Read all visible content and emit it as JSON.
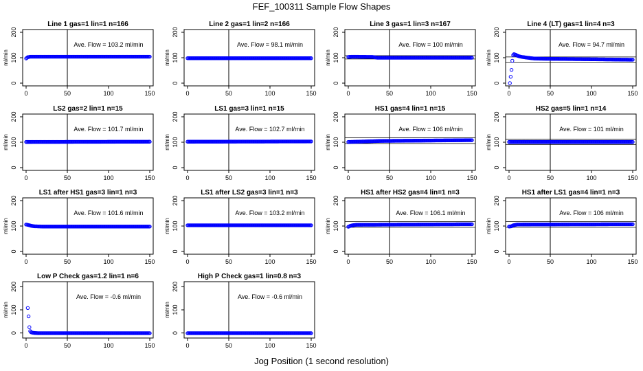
{
  "figure": {
    "title": "FEF_100311  Sample Flow Shapes",
    "xlabel": "Jog Position (1 second resolution)"
  },
  "style": {
    "point_color": "#0000ff",
    "axis_color": "#000000"
  },
  "chart_data": [
    {
      "type": "scatter",
      "title": "Line 1 gas=1 lin=1 n=166",
      "ylabel": "ml/min",
      "xlim": [
        0,
        150
      ],
      "ylim": [
        0,
        200
      ],
      "xticks": [
        0,
        50,
        100,
        150
      ],
      "yticks": [
        0,
        100,
        200
      ],
      "ref_lines": {
        "x": [
          50
        ],
        "y": []
      },
      "annotation": "Ave. Flow =  103.2  ml/min",
      "series": [
        {
          "x": [
            0,
            2,
            5,
            10,
            150
          ],
          "y": [
            97,
            102,
            104,
            104,
            104
          ]
        }
      ]
    },
    {
      "type": "scatter",
      "title": "Line 2 gas=1 lin=2 n=166",
      "ylabel": "ml/min",
      "xlim": [
        0,
        150
      ],
      "ylim": [
        0,
        200
      ],
      "xticks": [
        0,
        50,
        100,
        150
      ],
      "yticks": [
        0,
        100,
        200
      ],
      "ref_lines": {
        "x": [
          50
        ],
        "y": []
      },
      "annotation": "Ave. Flow =  98.1  ml/min",
      "series": [
        {
          "x": [
            0,
            5,
            150
          ],
          "y": [
            98,
            98,
            98
          ]
        }
      ]
    },
    {
      "type": "scatter",
      "title": "Line 3 gas=1 lin=3 n=167",
      "ylabel": "ml/min",
      "xlim": [
        0,
        150
      ],
      "ylim": [
        0,
        200
      ],
      "xticks": [
        0,
        50,
        100,
        150
      ],
      "yticks": [
        0,
        100,
        200
      ],
      "ref_lines": {
        "x": [
          50
        ],
        "y": [
          108,
          95
        ]
      },
      "annotation": "Ave. Flow =  100  ml/min",
      "series": [
        {
          "x": [
            0,
            5,
            30,
            35,
            150
          ],
          "y": [
            103,
            104,
            103,
            100,
            100
          ]
        }
      ]
    },
    {
      "type": "scatter",
      "title": "Line 4 (LT) gas=1 lin=4 n=3",
      "ylabel": "ml/min",
      "xlim": [
        0,
        150
      ],
      "ylim": [
        0,
        200
      ],
      "xticks": [
        0,
        50,
        100,
        150
      ],
      "yticks": [
        0,
        100,
        200
      ],
      "ref_lines": {
        "x": [
          50
        ],
        "y": [
          103,
          82
        ]
      },
      "annotation": "Ave. Flow =  94.7  ml/min",
      "series": [
        {
          "x": [
            1,
            2,
            3,
            4,
            5,
            6,
            8,
            10,
            13,
            16,
            20,
            25,
            30,
            40,
            150
          ],
          "y": [
            0,
            25,
            52,
            88,
            110,
            114,
            112,
            108,
            105,
            103,
            101,
            99,
            97,
            96,
            92
          ]
        }
      ]
    },
    {
      "type": "scatter",
      "title": "LS2 gas=2 lin=1 n=15",
      "ylabel": "ml/min",
      "xlim": [
        0,
        150
      ],
      "ylim": [
        0,
        200
      ],
      "xticks": [
        0,
        50,
        100,
        150
      ],
      "yticks": [
        0,
        100,
        200
      ],
      "ref_lines": {
        "x": [
          50
        ],
        "y": []
      },
      "annotation": "Ave. Flow =  101.7  ml/min",
      "series": [
        {
          "x": [
            0,
            150
          ],
          "y": [
            101,
            102
          ]
        }
      ]
    },
    {
      "type": "scatter",
      "title": "LS1 gas=3 lin=1 n=15",
      "ylabel": "ml/min",
      "xlim": [
        0,
        150
      ],
      "ylim": [
        0,
        200
      ],
      "xticks": [
        0,
        50,
        100,
        150
      ],
      "yticks": [
        0,
        100,
        200
      ],
      "ref_lines": {
        "x": [
          50
        ],
        "y": []
      },
      "annotation": "Ave. Flow =  102.7  ml/min",
      "series": [
        {
          "x": [
            0,
            150
          ],
          "y": [
            102,
            103
          ]
        }
      ]
    },
    {
      "type": "scatter",
      "title": "HS1 gas=4 lin=1 n=15",
      "ylabel": "ml/min",
      "xlim": [
        0,
        150
      ],
      "ylim": [
        0,
        200
      ],
      "xticks": [
        0,
        50,
        100,
        150
      ],
      "yticks": [
        0,
        100,
        200
      ],
      "ref_lines": {
        "x": [
          50
        ],
        "y": [
          118,
          95
        ]
      },
      "annotation": "Ave. Flow =  106  ml/min",
      "series": [
        {
          "x": [
            0,
            20,
            40,
            150
          ],
          "y": [
            101,
            103,
            105,
            108
          ]
        }
      ]
    },
    {
      "type": "scatter",
      "title": "HS2 gas=5 lin=1 n=14",
      "ylabel": "ml/min",
      "xlim": [
        0,
        150
      ],
      "ylim": [
        0,
        200
      ],
      "xticks": [
        0,
        50,
        100,
        150
      ],
      "yticks": [
        0,
        100,
        200
      ],
      "ref_lines": {
        "x": [
          50
        ],
        "y": [
          112,
          91
        ]
      },
      "annotation": "Ave. Flow =  101  ml/min",
      "series": [
        {
          "x": [
            0,
            150
          ],
          "y": [
            101,
            101
          ]
        }
      ]
    },
    {
      "type": "scatter",
      "title": "LS1 after HS1 gas=3 lin=1 n=3",
      "ylabel": "ml/min",
      "xlim": [
        0,
        150
      ],
      "ylim": [
        0,
        200
      ],
      "xticks": [
        0,
        50,
        100,
        150
      ],
      "yticks": [
        0,
        100,
        200
      ],
      "ref_lines": {
        "x": [
          50
        ],
        "y": []
      },
      "annotation": "Ave. Flow =  101.6  ml/min",
      "series": [
        {
          "x": [
            0,
            3,
            6,
            10,
            20,
            150
          ],
          "y": [
            106,
            104,
            101,
            99,
            98,
            98
          ]
        }
      ]
    },
    {
      "type": "scatter",
      "title": "LS1 after LS2 gas=3 lin=1 n=3",
      "ylabel": "ml/min",
      "xlim": [
        0,
        150
      ],
      "ylim": [
        0,
        200
      ],
      "xticks": [
        0,
        50,
        100,
        150
      ],
      "yticks": [
        0,
        100,
        200
      ],
      "ref_lines": {
        "x": [
          50
        ],
        "y": []
      },
      "annotation": "Ave. Flow =  103.2  ml/min",
      "series": [
        {
          "x": [
            0,
            150
          ],
          "y": [
            103,
            103
          ]
        }
      ]
    },
    {
      "type": "scatter",
      "title": "HS1 after HS2 gas=4 lin=1 n=3",
      "ylabel": "ml/min",
      "xlim": [
        0,
        150
      ],
      "ylim": [
        0,
        200
      ],
      "xticks": [
        0,
        50,
        100,
        150
      ],
      "yticks": [
        0,
        100,
        200
      ],
      "ref_lines": {
        "x": [
          50
        ],
        "y": [
          118,
          95
        ]
      },
      "annotation": "Ave. Flow =  106.1  ml/min",
      "series": [
        {
          "x": [
            0,
            2,
            5,
            10,
            150
          ],
          "y": [
            97,
            100,
            103,
            105,
            107
          ]
        }
      ]
    },
    {
      "type": "scatter",
      "title": "HS1 after LS1 gas=4 lin=1 n=3",
      "ylabel": "ml/min",
      "xlim": [
        0,
        150
      ],
      "ylim": [
        0,
        200
      ],
      "xticks": [
        0,
        50,
        100,
        150
      ],
      "yticks": [
        0,
        100,
        200
      ],
      "ref_lines": {
        "x": [
          50
        ],
        "y": [
          118,
          95
        ]
      },
      "annotation": "Ave. Flow =  106  ml/min",
      "series": [
        {
          "x": [
            0,
            3,
            5,
            10,
            150
          ],
          "y": [
            98,
            99,
            103,
            106,
            107
          ]
        }
      ]
    },
    {
      "type": "scatter",
      "title": "Low P Check gas=1.2 lin=1 n=6",
      "ylabel": "ml/min",
      "xlim": [
        0,
        150
      ],
      "ylim": [
        -10,
        210
      ],
      "xticks": [
        0,
        50,
        100,
        150
      ],
      "yticks": [
        0,
        100,
        200
      ],
      "ref_lines": {
        "x": [
          50
        ],
        "y": []
      },
      "annotation": "Ave. Flow =  -0.6  ml/min",
      "series": [
        {
          "x": [
            2,
            3,
            4,
            5,
            6,
            8,
            10,
            15,
            150
          ],
          "y": [
            108,
            72,
            25,
            8,
            3,
            1,
            0,
            -1,
            -1
          ]
        }
      ]
    },
    {
      "type": "scatter",
      "title": "High P Check gas=1 lin=0.8 n=3",
      "ylabel": "ml/min",
      "xlim": [
        0,
        150
      ],
      "ylim": [
        -10,
        210
      ],
      "xticks": [
        0,
        50,
        100,
        150
      ],
      "yticks": [
        0,
        100,
        200
      ],
      "ref_lines": {
        "x": [
          50
        ],
        "y": []
      },
      "annotation": "Ave. Flow =  -0.6  ml/min",
      "series": [
        {
          "x": [
            0,
            150
          ],
          "y": [
            -1,
            -1
          ]
        }
      ]
    }
  ]
}
